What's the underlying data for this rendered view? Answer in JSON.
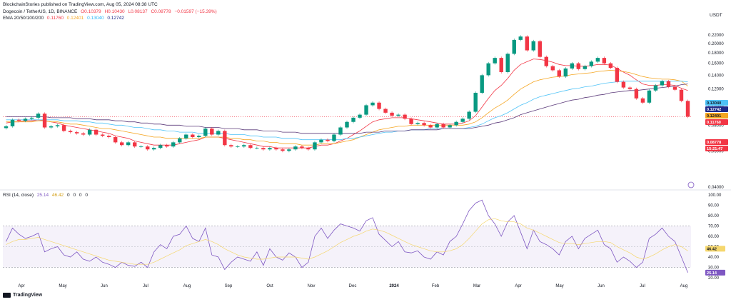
{
  "header": {
    "published": "BlockchainStories published on TradingView.com, Aug 05, 2024 08:38 UTC",
    "symbol": "Dogecoin / TetherUS, 1D, BINANCE",
    "ohlc": {
      "open": "O0.10379",
      "high": "H0.10430",
      "low": "L0.08137",
      "close": "C0.08778",
      "change": "−0.01597 (−15.39%)"
    },
    "ema_label": "EMA 20/50/100/200",
    "ema_values": [
      "0.11760",
      "0.12401",
      "0.13040",
      "0.12742"
    ],
    "rsi_label": "RSI (14, close)",
    "rsi_values": [
      "25.14",
      "46.42",
      "0",
      "0",
      "0",
      "0"
    ],
    "currency": "USDT"
  },
  "footer": {
    "logo": "TradingView"
  },
  "colors": {
    "up": "#089981",
    "down": "#f23645",
    "ema20": "#f23645",
    "ema50": "#f5a623",
    "ema100": "#4fc3f7",
    "ema200": "#5b3a7a",
    "rsi": "#7e57c2",
    "rsi_ma": "#f5d76e",
    "rsi_band": "#7e57c2"
  },
  "chart_data": [
    {
      "type": "line",
      "title": "Dogecoin / TetherUS, 1D, BINANCE",
      "y_scale": "log",
      "ylim": [
        0.04,
        0.24
      ],
      "y_ticks": [
        "0.22000",
        "0.20000",
        "0.18000",
        "0.16000",
        "0.14000",
        "0.12000",
        "0.10000",
        "0.08000",
        "0.06000",
        "0.04000"
      ],
      "x_ticks": [
        "Apr",
        "May",
        "Jun",
        "Jul",
        "Aug",
        "Sep",
        "Oct",
        "Nov",
        "Dec",
        "2024",
        "Feb",
        "Mar",
        "Apr",
        "May",
        "Jun",
        "Jul",
        "Aug"
      ],
      "badges": [
        {
          "label": "0.13040",
          "color": "#4fc3f7"
        },
        {
          "label": "0.12742",
          "color": "#1e2a8a"
        },
        {
          "label": "0.12401",
          "color": "#f5a623"
        },
        {
          "label": "0.11760",
          "color": "#f23645"
        },
        {
          "label": "0.08778",
          "color": "#f23645"
        },
        {
          "label": "15:21:47",
          "color": "#f23645"
        }
      ],
      "series": [
        {
          "name": "Close",
          "values": [
            0.079,
            0.085,
            0.084,
            0.086,
            0.087,
            0.091,
            0.078,
            0.079,
            0.08,
            0.075,
            0.074,
            0.073,
            0.072,
            0.076,
            0.072,
            0.071,
            0.07,
            0.066,
            0.064,
            0.066,
            0.063,
            0.063,
            0.061,
            0.062,
            0.064,
            0.063,
            0.066,
            0.069,
            0.072,
            0.07,
            0.071,
            0.077,
            0.072,
            0.075,
            0.064,
            0.063,
            0.063,
            0.064,
            0.062,
            0.062,
            0.061,
            0.062,
            0.061,
            0.06,
            0.061,
            0.063,
            0.062,
            0.061,
            0.066,
            0.068,
            0.067,
            0.072,
            0.078,
            0.083,
            0.087,
            0.09,
            0.1,
            0.103,
            0.096,
            0.092,
            0.089,
            0.09,
            0.086,
            0.081,
            0.082,
            0.08,
            0.078,
            0.081,
            0.078,
            0.08,
            0.083,
            0.086,
            0.093,
            0.115,
            0.14,
            0.16,
            0.17,
            0.145,
            0.178,
            0.208,
            0.216,
            0.185,
            0.205,
            0.172,
            0.155,
            0.148,
            0.138,
            0.151,
            0.16,
            0.15,
            0.155,
            0.163,
            0.17,
            0.16,
            0.152,
            0.13,
            0.122,
            0.12,
            0.108,
            0.103,
            0.118,
            0.125,
            0.131,
            0.123,
            0.119,
            0.105,
            0.088
          ]
        },
        {
          "name": "EMA 20",
          "values": [
            0.082,
            0.083,
            0.083,
            0.084,
            0.084,
            0.085,
            0.084,
            0.083,
            0.082,
            0.08,
            0.079,
            0.078,
            0.077,
            0.076,
            0.075,
            0.074,
            0.073,
            0.071,
            0.07,
            0.069,
            0.067,
            0.066,
            0.065,
            0.064,
            0.064,
            0.064,
            0.064,
            0.065,
            0.066,
            0.067,
            0.068,
            0.07,
            0.07,
            0.07,
            0.069,
            0.068,
            0.067,
            0.066,
            0.065,
            0.064,
            0.063,
            0.063,
            0.062,
            0.062,
            0.062,
            0.062,
            0.062,
            0.062,
            0.063,
            0.064,
            0.064,
            0.065,
            0.067,
            0.069,
            0.072,
            0.075,
            0.079,
            0.083,
            0.085,
            0.086,
            0.087,
            0.087,
            0.087,
            0.086,
            0.085,
            0.084,
            0.083,
            0.082,
            0.081,
            0.081,
            0.081,
            0.082,
            0.084,
            0.089,
            0.098,
            0.108,
            0.118,
            0.125,
            0.135,
            0.148,
            0.158,
            0.163,
            0.168,
            0.167,
            0.165,
            0.162,
            0.158,
            0.156,
            0.156,
            0.155,
            0.155,
            0.156,
            0.158,
            0.158,
            0.157,
            0.151,
            0.145,
            0.14,
            0.133,
            0.127,
            0.125,
            0.125,
            0.126,
            0.126,
            0.125,
            0.121,
            0.118
          ]
        },
        {
          "name": "EMA 50",
          "values": [
            0.083,
            0.083,
            0.083,
            0.083,
            0.083,
            0.084,
            0.084,
            0.083,
            0.083,
            0.082,
            0.081,
            0.081,
            0.08,
            0.079,
            0.078,
            0.077,
            0.077,
            0.076,
            0.075,
            0.074,
            0.073,
            0.072,
            0.071,
            0.07,
            0.07,
            0.069,
            0.069,
            0.069,
            0.069,
            0.069,
            0.069,
            0.07,
            0.07,
            0.07,
            0.07,
            0.069,
            0.069,
            0.068,
            0.068,
            0.067,
            0.067,
            0.066,
            0.066,
            0.065,
            0.065,
            0.065,
            0.064,
            0.064,
            0.064,
            0.065,
            0.065,
            0.065,
            0.066,
            0.067,
            0.068,
            0.07,
            0.072,
            0.074,
            0.076,
            0.077,
            0.078,
            0.079,
            0.079,
            0.08,
            0.08,
            0.08,
            0.08,
            0.08,
            0.08,
            0.08,
            0.08,
            0.08,
            0.081,
            0.083,
            0.087,
            0.092,
            0.097,
            0.101,
            0.106,
            0.113,
            0.12,
            0.125,
            0.13,
            0.133,
            0.135,
            0.137,
            0.138,
            0.139,
            0.141,
            0.142,
            0.143,
            0.144,
            0.146,
            0.147,
            0.148,
            0.147,
            0.146,
            0.144,
            0.141,
            0.138,
            0.136,
            0.135,
            0.134,
            0.134,
            0.133,
            0.131,
            0.124
          ]
        },
        {
          "name": "EMA 100",
          "values": [
            0.085,
            0.085,
            0.085,
            0.085,
            0.085,
            0.085,
            0.085,
            0.085,
            0.085,
            0.084,
            0.084,
            0.084,
            0.083,
            0.083,
            0.082,
            0.082,
            0.081,
            0.08,
            0.08,
            0.079,
            0.078,
            0.078,
            0.077,
            0.076,
            0.076,
            0.075,
            0.075,
            0.074,
            0.074,
            0.074,
            0.073,
            0.073,
            0.073,
            0.073,
            0.073,
            0.072,
            0.072,
            0.072,
            0.071,
            0.071,
            0.07,
            0.07,
            0.07,
            0.069,
            0.069,
            0.069,
            0.068,
            0.068,
            0.068,
            0.068,
            0.068,
            0.068,
            0.068,
            0.069,
            0.069,
            0.07,
            0.071,
            0.072,
            0.073,
            0.074,
            0.074,
            0.075,
            0.075,
            0.076,
            0.076,
            0.076,
            0.077,
            0.077,
            0.077,
            0.077,
            0.077,
            0.077,
            0.078,
            0.079,
            0.081,
            0.084,
            0.087,
            0.089,
            0.092,
            0.096,
            0.1,
            0.103,
            0.107,
            0.11,
            0.112,
            0.114,
            0.116,
            0.118,
            0.12,
            0.121,
            0.123,
            0.124,
            0.126,
            0.128,
            0.129,
            0.13,
            0.131,
            0.131,
            0.131,
            0.131,
            0.131,
            0.131,
            0.131,
            0.131,
            0.131,
            0.131,
            0.13
          ]
        },
        {
          "name": "EMA 200",
          "values": [
            0.088,
            0.088,
            0.088,
            0.088,
            0.088,
            0.088,
            0.088,
            0.087,
            0.087,
            0.087,
            0.087,
            0.086,
            0.086,
            0.086,
            0.085,
            0.085,
            0.085,
            0.084,
            0.084,
            0.083,
            0.083,
            0.082,
            0.082,
            0.081,
            0.081,
            0.08,
            0.08,
            0.08,
            0.079,
            0.079,
            0.079,
            0.078,
            0.078,
            0.078,
            0.077,
            0.077,
            0.077,
            0.076,
            0.076,
            0.076,
            0.075,
            0.075,
            0.075,
            0.074,
            0.074,
            0.074,
            0.073,
            0.073,
            0.073,
            0.073,
            0.073,
            0.073,
            0.073,
            0.073,
            0.073,
            0.073,
            0.074,
            0.074,
            0.074,
            0.075,
            0.075,
            0.075,
            0.075,
            0.076,
            0.076,
            0.076,
            0.076,
            0.076,
            0.077,
            0.077,
            0.077,
            0.077,
            0.077,
            0.078,
            0.079,
            0.08,
            0.082,
            0.083,
            0.085,
            0.087,
            0.09,
            0.092,
            0.094,
            0.096,
            0.098,
            0.1,
            0.102,
            0.104,
            0.106,
            0.107,
            0.109,
            0.11,
            0.112,
            0.113,
            0.115,
            0.116,
            0.117,
            0.118,
            0.118,
            0.119,
            0.12,
            0.121,
            0.122,
            0.123,
            0.124,
            0.126,
            0.127
          ]
        }
      ]
    },
    {
      "type": "line",
      "title": "RSI (14, close)",
      "ylim": [
        18,
        102
      ],
      "y_ticks": [
        "100.00",
        "90.00",
        "80.00",
        "70.00",
        "60.00",
        "50.00",
        "40.00",
        "30.00",
        "20.00"
      ],
      "bands": [
        30,
        70
      ],
      "midline": 50,
      "badges": [
        {
          "label": "46.42",
          "color": "#f5d76e"
        },
        {
          "label": "25.14",
          "color": "#7e57c2"
        }
      ],
      "series": [
        {
          "name": "RSI",
          "values": [
            55,
            68,
            62,
            58,
            60,
            63,
            45,
            48,
            50,
            42,
            40,
            45,
            38,
            36,
            40,
            35,
            33,
            30,
            35,
            32,
            31,
            35,
            30,
            45,
            52,
            48,
            60,
            62,
            70,
            58,
            55,
            68,
            42,
            40,
            28,
            35,
            40,
            38,
            36,
            45,
            32,
            48,
            40,
            37,
            44,
            40,
            30,
            35,
            60,
            68,
            58,
            66,
            72,
            70,
            68,
            65,
            75,
            78,
            62,
            56,
            50,
            55,
            45,
            44,
            46,
            40,
            38,
            45,
            42,
            55,
            60,
            72,
            85,
            92,
            95,
            80,
            72,
            60,
            74,
            80,
            64,
            48,
            66,
            55,
            52,
            48,
            42,
            55,
            60,
            48,
            58,
            62,
            66,
            52,
            48,
            35,
            40,
            36,
            30,
            35,
            58,
            62,
            68,
            60,
            55,
            40,
            25
          ]
        },
        {
          "name": "RSI MA",
          "values": [
            52,
            55,
            57,
            57,
            58,
            59,
            57,
            55,
            53,
            51,
            49,
            47,
            45,
            43,
            41,
            39,
            37,
            36,
            35,
            34,
            33,
            33,
            33,
            35,
            38,
            41,
            44,
            47,
            51,
            53,
            55,
            57,
            55,
            52,
            48,
            45,
            42,
            40,
            39,
            38,
            38,
            39,
            40,
            40,
            40,
            40,
            39,
            38,
            40,
            43,
            46,
            50,
            54,
            57,
            60,
            62,
            65,
            67,
            66,
            64,
            61,
            58,
            55,
            52,
            50,
            48,
            46,
            45,
            45,
            46,
            48,
            52,
            58,
            65,
            72,
            76,
            77,
            75,
            74,
            74,
            72,
            68,
            66,
            63,
            60,
            57,
            54,
            53,
            53,
            52,
            53,
            54,
            55,
            55,
            54,
            50,
            47,
            44,
            40,
            38,
            40,
            43,
            47,
            50,
            52,
            50,
            46
          ]
        }
      ]
    }
  ]
}
